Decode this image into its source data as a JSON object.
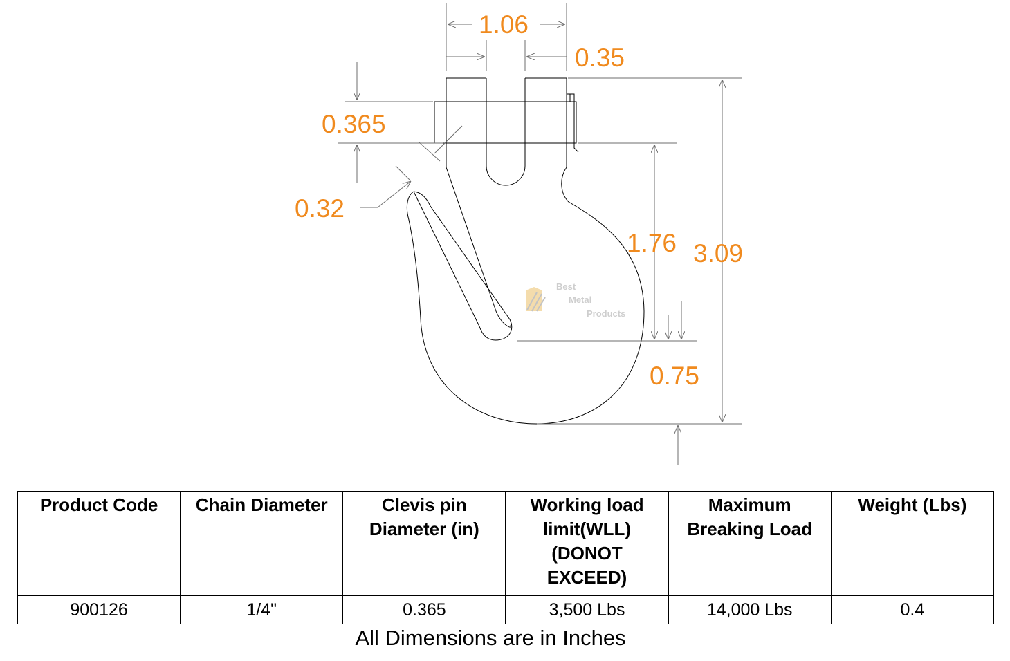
{
  "dimensions": {
    "d1": "1.06",
    "d2": "0.35",
    "d3": "0.365",
    "d4": "0.32",
    "d5": "1.76",
    "d6": "3.09",
    "d7": "0.75"
  },
  "logo": {
    "line1": "Best",
    "line2": "Metal",
    "line3": "Products"
  },
  "table": {
    "headers": [
      "Product Code",
      "Chain Diameter",
      "Clevis pin Diameter (in)",
      "Working load limit(WLL) (DONOT EXCEED)",
      "Maximum Breaking Load",
      "Weight (Lbs)"
    ],
    "row": [
      "900126",
      "1/4\"",
      "0.365",
      "3,500 Lbs",
      "14,000 Lbs",
      "0.4"
    ]
  },
  "footnote": "All Dimensions are in Inches",
  "colors": {
    "dimension_text": "#F08A1E",
    "lines": "#6e6e6e",
    "outline": "#000000"
  }
}
